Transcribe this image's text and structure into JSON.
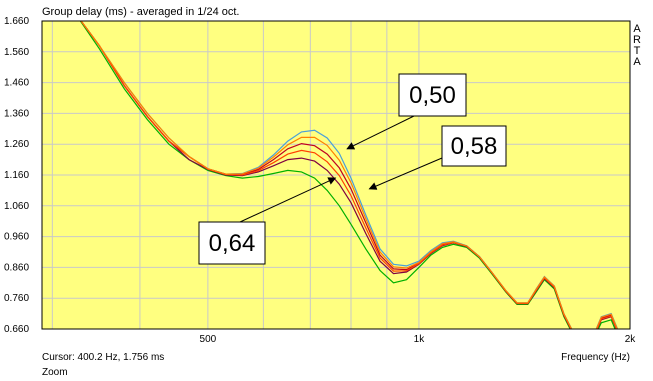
{
  "window": {
    "title": "Group delay (ms) - averaged in 1/24 oct.",
    "brand": "ARTA",
    "xlabel": "Frequency (Hz)",
    "cursor": "Cursor: 400.2 Hz, 1.756 ms",
    "zoom": "Zoom"
  },
  "colors": {
    "plot_bg": "#FFFF80",
    "grid": "#c9c9c9",
    "frame": "#000000",
    "series": [
      "#00b000",
      "#4aa0d8",
      "#800040",
      "#c00020",
      "#ff4000",
      "#ff8000"
    ]
  },
  "chart_data": {
    "type": "line",
    "title": "Group delay (ms) - averaged in 1/24 oct.",
    "xlabel": "Frequency (Hz)",
    "ylabel": "",
    "xscale": "log",
    "xlim": [
      290,
      2000
    ],
    "ylim": [
      0.66,
      1.66
    ],
    "grid": true,
    "x_ticks": [
      500,
      1000,
      2000
    ],
    "x_tick_labels": [
      "500",
      "1k",
      "2k"
    ],
    "y_ticks": [
      0.66,
      0.76,
      0.86,
      0.96,
      1.06,
      1.16,
      1.26,
      1.36,
      1.46,
      1.56,
      1.66
    ],
    "y_tick_labels": [
      "0.660",
      "0.760",
      "0.860",
      "0.960",
      "1.060",
      "1.160",
      "1.260",
      "1.360",
      "1.460",
      "1.560",
      "1.660"
    ],
    "x": [
      320,
      350,
      380,
      410,
      440,
      470,
      500,
      530,
      560,
      590,
      620,
      650,
      680,
      710,
      740,
      770,
      800,
      840,
      880,
      920,
      960,
      1000,
      1040,
      1080,
      1120,
      1170,
      1220,
      1270,
      1330,
      1380,
      1430,
      1470,
      1510,
      1560,
      1610,
      1660,
      1710,
      1760,
      1820,
      1880,
      1920
    ],
    "series": [
      {
        "values": [
          1.7,
          1.57,
          1.44,
          1.34,
          1.26,
          1.21,
          1.175,
          1.158,
          1.15,
          1.155,
          1.165,
          1.175,
          1.17,
          1.15,
          1.11,
          1.06,
          1.0,
          0.92,
          0.85,
          0.81,
          0.82,
          0.86,
          0.9,
          0.925,
          0.935,
          0.925,
          0.89,
          0.84,
          0.78,
          0.74,
          0.74,
          0.78,
          0.82,
          0.79,
          0.7,
          0.64,
          0.6,
          0.61,
          0.68,
          0.69,
          0.64
        ]
      },
      {
        "values": [
          1.7,
          1.58,
          1.46,
          1.36,
          1.28,
          1.22,
          1.18,
          1.163,
          1.165,
          1.185,
          1.225,
          1.27,
          1.3,
          1.305,
          1.28,
          1.23,
          1.15,
          1.03,
          0.92,
          0.87,
          0.865,
          0.88,
          0.915,
          0.94,
          0.945,
          0.93,
          0.895,
          0.845,
          0.785,
          0.745,
          0.745,
          0.79,
          0.83,
          0.8,
          0.71,
          0.65,
          0.61,
          0.62,
          0.7,
          0.71,
          0.66
        ]
      },
      {
        "values": [
          1.7,
          1.58,
          1.45,
          1.35,
          1.27,
          1.21,
          1.178,
          1.16,
          1.158,
          1.17,
          1.19,
          1.21,
          1.215,
          1.205,
          1.175,
          1.13,
          1.07,
          0.97,
          0.88,
          0.84,
          0.845,
          0.87,
          0.905,
          0.93,
          0.94,
          0.928,
          0.893,
          0.843,
          0.782,
          0.742,
          0.742,
          0.784,
          0.824,
          0.794,
          0.704,
          0.644,
          0.604,
          0.614,
          0.69,
          0.7,
          0.65
        ]
      },
      {
        "values": [
          1.7,
          1.58,
          1.45,
          1.35,
          1.27,
          1.22,
          1.18,
          1.163,
          1.162,
          1.178,
          1.21,
          1.245,
          1.262,
          1.255,
          1.228,
          1.183,
          1.115,
          1.005,
          0.9,
          0.855,
          0.853,
          0.873,
          0.908,
          0.934,
          0.942,
          0.929,
          0.894,
          0.844,
          0.784,
          0.744,
          0.744,
          0.788,
          0.828,
          0.798,
          0.708,
          0.648,
          0.608,
          0.618,
          0.695,
          0.705,
          0.655
        ]
      },
      {
        "values": [
          1.7,
          1.58,
          1.45,
          1.35,
          1.27,
          1.22,
          1.179,
          1.162,
          1.16,
          1.174,
          1.2,
          1.228,
          1.24,
          1.232,
          1.203,
          1.158,
          1.093,
          0.988,
          0.891,
          0.848,
          0.849,
          0.872,
          0.907,
          0.932,
          0.941,
          0.929,
          0.894,
          0.844,
          0.783,
          0.743,
          0.743,
          0.786,
          0.826,
          0.796,
          0.706,
          0.646,
          0.606,
          0.616,
          0.692,
          0.702,
          0.652
        ]
      },
      {
        "values": [
          1.7,
          1.58,
          1.46,
          1.36,
          1.28,
          1.22,
          1.18,
          1.163,
          1.164,
          1.182,
          1.218,
          1.258,
          1.282,
          1.282,
          1.256,
          1.208,
          1.135,
          1.018,
          0.91,
          0.862,
          0.858,
          0.876,
          0.911,
          0.937,
          0.943,
          0.929,
          0.894,
          0.844,
          0.785,
          0.745,
          0.745,
          0.789,
          0.829,
          0.799,
          0.709,
          0.649,
          0.609,
          0.619,
          0.698,
          0.708,
          0.658
        ]
      }
    ],
    "annotations": [
      {
        "label": "0,50",
        "target": [
          790,
          1.245
        ]
      },
      {
        "label": "0,58",
        "target": [
          850,
          1.115
        ]
      },
      {
        "label": "0,64",
        "target": [
          760,
          1.15
        ]
      }
    ]
  }
}
